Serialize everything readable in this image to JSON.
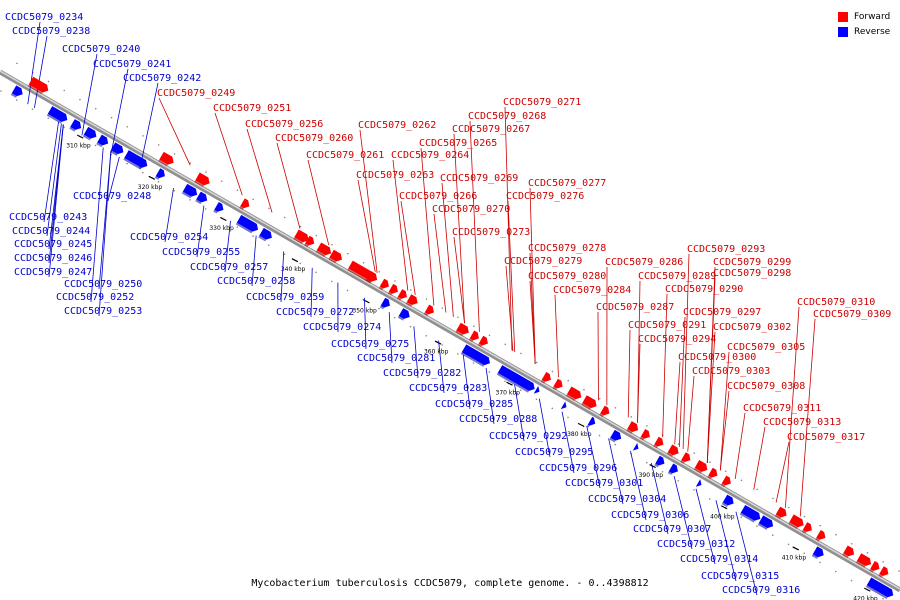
{
  "legend": {
    "forward_label": "Forward",
    "reverse_label": "Reverse",
    "forward_color": "#ff0000",
    "reverse_color": "#0000ff"
  },
  "caption": "Mycobacterium tuberculosis CCDC5079, complete genome. - 0..4398812",
  "ticks": [
    "310 kbp",
    "320 kbp",
    "330 kbp",
    "340 kbp",
    "350 kbp",
    "360 kbp",
    "370 kbp",
    "380 kbp",
    "390 kbp",
    "400 kbp",
    "410 kbp",
    "420 kbp"
  ],
  "forward_genes": [
    "CCDC5079_0249",
    "CCDC5079_0251",
    "CCDC5079_0256",
    "CCDC5079_0260",
    "CCDC5079_0261",
    "CCDC5079_0262",
    "CCDC5079_0263",
    "CCDC5079_0264",
    "CCDC5079_0265",
    "CCDC5079_0266",
    "CCDC5079_0267",
    "CCDC5079_0268",
    "CCDC5079_0269",
    "CCDC5079_0270",
    "CCDC5079_0271",
    "CCDC5079_0273",
    "CCDC5079_0276",
    "CCDC5079_0277",
    "CCDC5079_0278",
    "CCDC5079_0279",
    "CCDC5079_0280",
    "CCDC5079_0284",
    "CCDC5079_0286",
    "CCDC5079_0287",
    "CCDC5079_0289",
    "CCDC5079_0290",
    "CCDC5079_0291",
    "CCDC5079_0293",
    "CCDC5079_0294",
    "CCDC5079_0297",
    "CCDC5079_0298",
    "CCDC5079_0299",
    "CCDC5079_0300",
    "CCDC5079_0302",
    "CCDC5079_0303",
    "CCDC5079_0305",
    "CCDC5079_0308",
    "CCDC5079_0309",
    "CCDC5079_0310",
    "CCDC5079_0311",
    "CCDC5079_0313",
    "CCDC5079_0317"
  ],
  "reverse_genes": [
    "CCDC5079_0234",
    "CCDC5079_0238",
    "CCDC5079_0240",
    "CCDC5079_0241",
    "CCDC5079_0242",
    "CCDC5079_0243",
    "CCDC5079_0244",
    "CCDC5079_0245",
    "CCDC5079_0246",
    "CCDC5079_0247",
    "CCDC5079_0248",
    "CCDC5079_0250",
    "CCDC5079_0252",
    "CCDC5079_0253",
    "CCDC5079_0254",
    "CCDC5079_0255",
    "CCDC5079_0257",
    "CCDC5079_0258",
    "CCDC5079_0259",
    "CCDC5079_0272",
    "CCDC5079_0274",
    "CCDC5079_0275",
    "CCDC5079_0281",
    "CCDC5079_0282",
    "CCDC5079_0283",
    "CCDC5079_0285",
    "CCDC5079_0288",
    "CCDC5079_0292",
    "CCDC5079_0295",
    "CCDC5079_0296",
    "CCDC5079_0301",
    "CCDC5079_0304",
    "CCDC5079_0306",
    "CCDC5079_0307",
    "CCDC5079_0312",
    "CCDC5079_0314",
    "CCDC5079_0315",
    "CCDC5079_0316"
  ]
}
